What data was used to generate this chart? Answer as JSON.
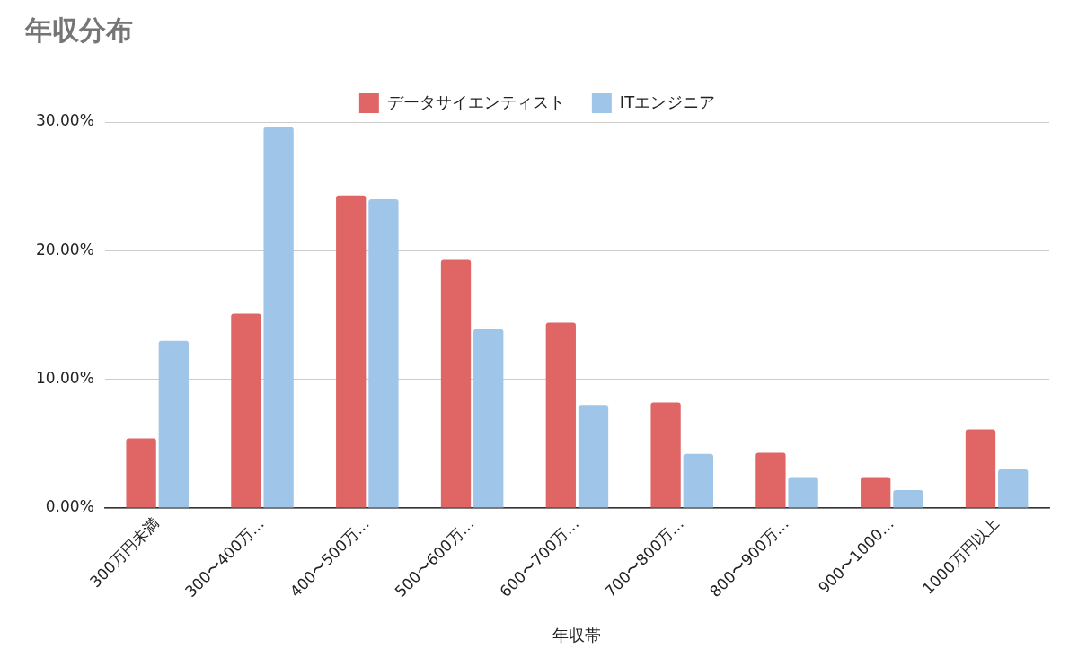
{
  "chart_data": {
    "type": "bar",
    "title": "年収分布",
    "xlabel": "年収帯",
    "categories": [
      "300万円未満",
      "300〜400万…",
      "400〜500万…",
      "500〜600万…",
      "600〜700万…",
      "700〜800万…",
      "800〜900万…",
      "900〜1000…",
      "1000万円以上"
    ],
    "series": [
      {
        "name": "データサイエンティスト",
        "color": "#e06666",
        "values": [
          5.4,
          15.1,
          24.3,
          19.3,
          14.4,
          8.2,
          4.3,
          2.4,
          6.1
        ]
      },
      {
        "name": "ITエンジニア",
        "color": "#9fc5e8",
        "values": [
          13.0,
          29.6,
          24.0,
          13.9,
          8.0,
          4.2,
          2.4,
          1.4,
          3.0
        ]
      }
    ],
    "ylim": [
      0,
      30
    ],
    "yticks": [
      {
        "value": 0,
        "label": "0.00%"
      },
      {
        "value": 10,
        "label": "10.00%"
      },
      {
        "value": 20,
        "label": "20.00%"
      },
      {
        "value": 30,
        "label": "30.00%"
      }
    ],
    "grid": "y",
    "legend": "top"
  }
}
